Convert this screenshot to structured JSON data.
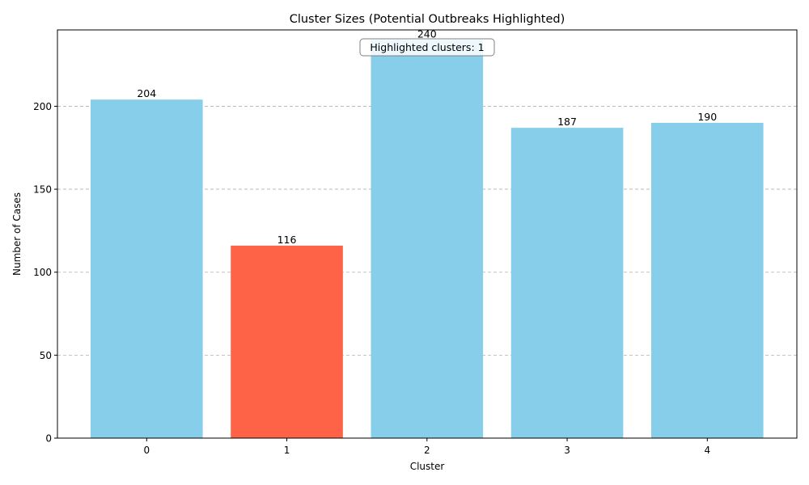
{
  "chart_data": {
    "type": "bar",
    "title": "Cluster Sizes (Potential Outbreaks Highlighted)",
    "xlabel": "Cluster",
    "ylabel": "Number of Cases",
    "categories": [
      "0",
      "1",
      "2",
      "3",
      "4"
    ],
    "values": [
      204,
      116,
      240,
      187,
      190
    ],
    "highlighted": [
      false,
      true,
      false,
      false,
      false
    ],
    "ylim": [
      0,
      246
    ],
    "yticks": [
      0,
      50,
      100,
      150,
      200
    ],
    "grid": "y-dashed",
    "colors": {
      "normal": "#87ceeb",
      "highlight": "#ff6347",
      "grid": "#b0b0b0",
      "axis": "#000000"
    },
    "annotation": "Highlighted clusters: 1"
  }
}
